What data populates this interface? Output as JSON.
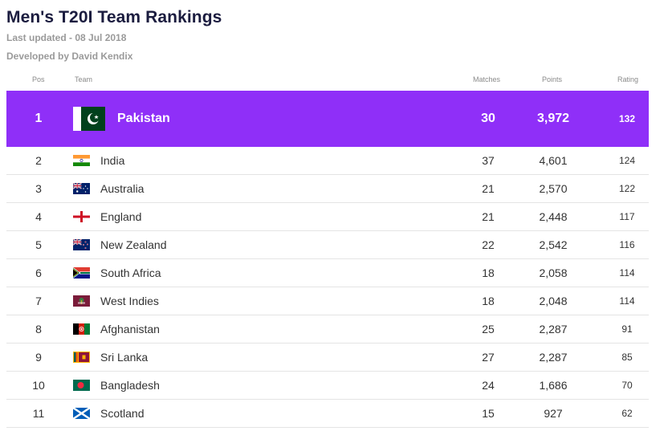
{
  "header": {
    "title": "Men's T20I Team Rankings",
    "last_updated": "Last updated - 08 Jul 2018",
    "developer": "Developed by David Kendix"
  },
  "columns": {
    "pos": "Pos",
    "team": "Team",
    "matches": "Matches",
    "points": "Points",
    "rating": "Rating"
  },
  "colors": {
    "highlight": "#8f2ff8",
    "title": "#1b1c3f"
  },
  "rows": [
    {
      "pos": "1",
      "team": "Pakistan",
      "flag": "pakistan-flag-icon",
      "matches": "30",
      "points": "3,972",
      "rating": "132"
    },
    {
      "pos": "2",
      "team": "India",
      "flag": "india-flag-icon",
      "matches": "37",
      "points": "4,601",
      "rating": "124"
    },
    {
      "pos": "3",
      "team": "Australia",
      "flag": "australia-flag-icon",
      "matches": "21",
      "points": "2,570",
      "rating": "122"
    },
    {
      "pos": "4",
      "team": "England",
      "flag": "england-flag-icon",
      "matches": "21",
      "points": "2,448",
      "rating": "117"
    },
    {
      "pos": "5",
      "team": "New Zealand",
      "flag": "new-zealand-flag-icon",
      "matches": "22",
      "points": "2,542",
      "rating": "116"
    },
    {
      "pos": "6",
      "team": "South Africa",
      "flag": "south-africa-flag-icon",
      "matches": "18",
      "points": "2,058",
      "rating": "114"
    },
    {
      "pos": "7",
      "team": "West Indies",
      "flag": "west-indies-flag-icon",
      "matches": "18",
      "points": "2,048",
      "rating": "114"
    },
    {
      "pos": "8",
      "team": "Afghanistan",
      "flag": "afghanistan-flag-icon",
      "matches": "25",
      "points": "2,287",
      "rating": "91"
    },
    {
      "pos": "9",
      "team": "Sri Lanka",
      "flag": "sri-lanka-flag-icon",
      "matches": "27",
      "points": "2,287",
      "rating": "85"
    },
    {
      "pos": "10",
      "team": "Bangladesh",
      "flag": "bangladesh-flag-icon",
      "matches": "24",
      "points": "1,686",
      "rating": "70"
    },
    {
      "pos": "11",
      "team": "Scotland",
      "flag": "scotland-flag-icon",
      "matches": "15",
      "points": "927",
      "rating": "62"
    }
  ]
}
